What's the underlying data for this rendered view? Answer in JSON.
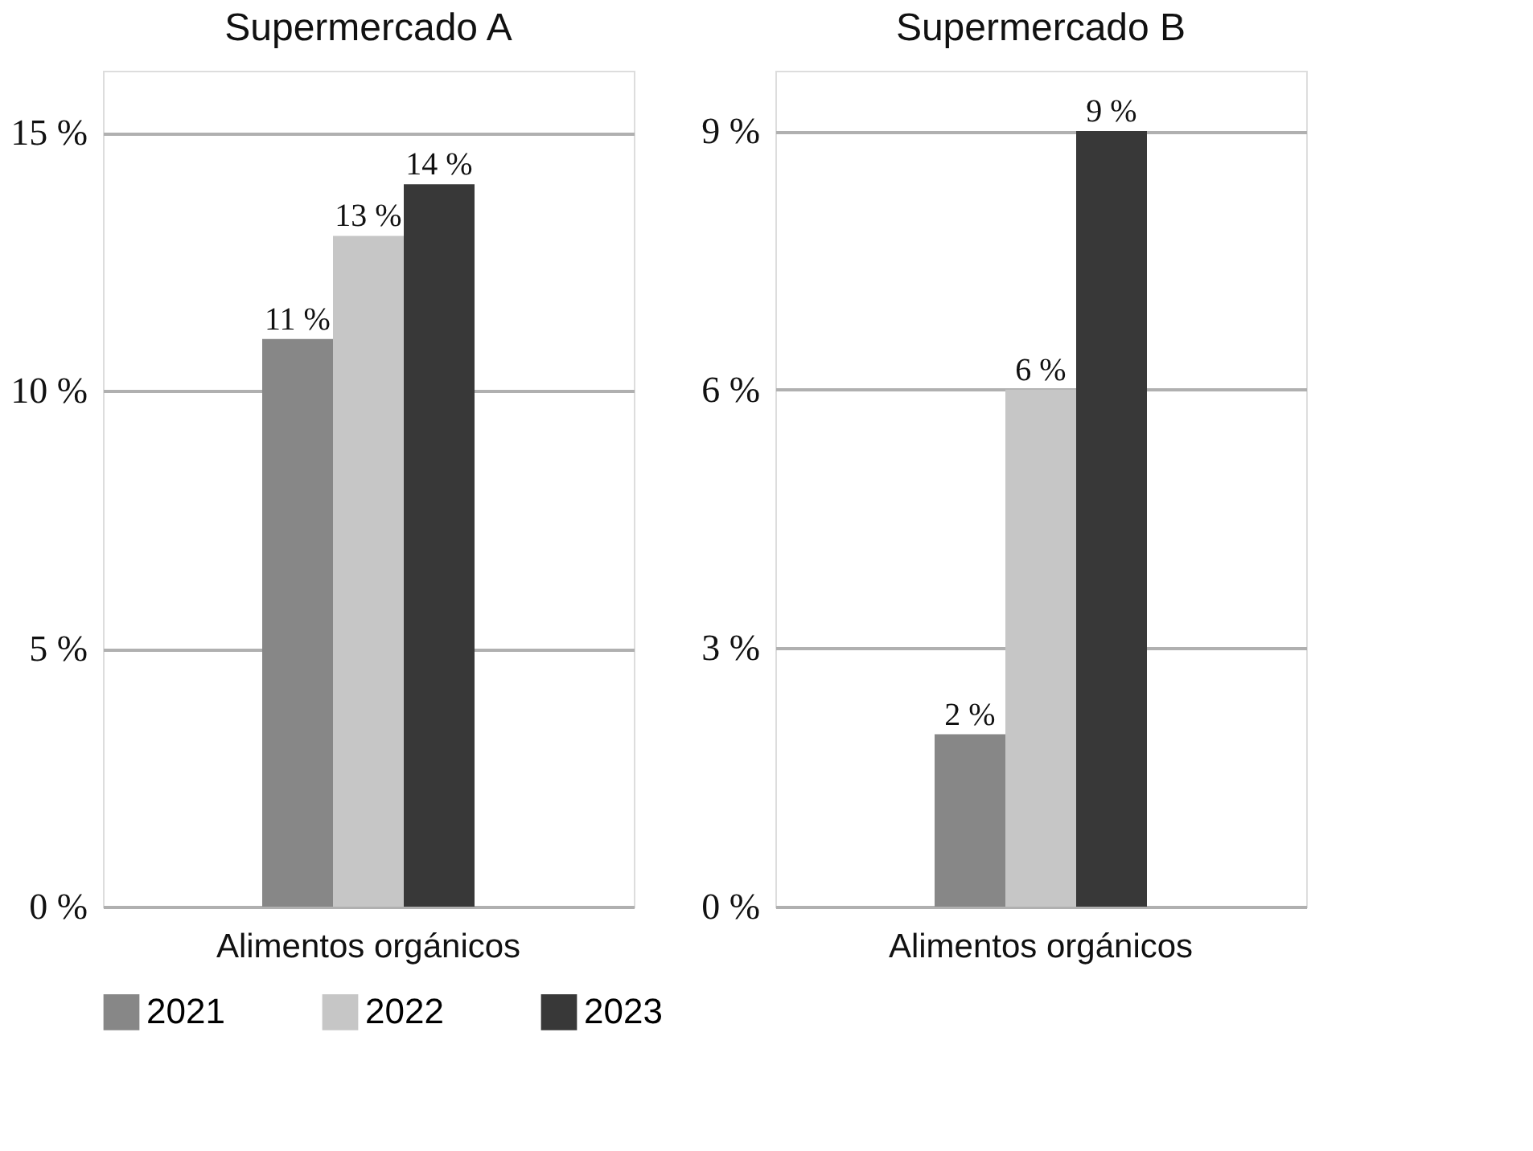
{
  "chart_data": [
    {
      "type": "bar",
      "title": "Supermercado A",
      "categories": [
        "Alimentos orgánicos"
      ],
      "series": [
        {
          "name": "2021",
          "color": "#878787",
          "values": [
            11
          ],
          "value_labels": [
            "11 %"
          ]
        },
        {
          "name": "2022",
          "color": "#c6c6c6",
          "values": [
            13
          ],
          "value_labels": [
            "13 %"
          ]
        },
        {
          "name": "2023",
          "color": "#383838",
          "values": [
            14
          ],
          "value_labels": [
            "14 %"
          ]
        }
      ],
      "ylim": [
        0,
        16.2
      ],
      "yticks": [
        {
          "value": 0,
          "label": "0 %"
        },
        {
          "value": 5,
          "label": "5 %"
        },
        {
          "value": 10,
          "label": "10 %"
        },
        {
          "value": 15,
          "label": "15 %"
        }
      ],
      "grid": true,
      "legend": "bottom"
    },
    {
      "type": "bar",
      "title": "Supermercado B",
      "categories": [
        "Alimentos orgánicos"
      ],
      "series": [
        {
          "name": "2021",
          "color": "#878787",
          "values": [
            2
          ],
          "value_labels": [
            "2 %"
          ]
        },
        {
          "name": "2022",
          "color": "#c6c6c6",
          "values": [
            6
          ],
          "value_labels": [
            "6 %"
          ]
        },
        {
          "name": "2023",
          "color": "#383838",
          "values": [
            9
          ],
          "value_labels": [
            "9 %"
          ]
        }
      ],
      "ylim": [
        0,
        9.7
      ],
      "yticks": [
        {
          "value": 0,
          "label": "0 %"
        },
        {
          "value": 3,
          "label": "3 %"
        },
        {
          "value": 6,
          "label": "6 %"
        },
        {
          "value": 9,
          "label": "9 %"
        }
      ],
      "grid": true,
      "legend": "bottom"
    }
  ]
}
